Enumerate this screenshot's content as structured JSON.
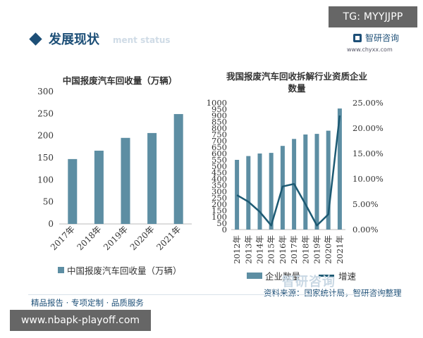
{
  "overlay_tag": "TG: MYYJJPP",
  "overlay_url": "www.nbapk-playoff.com",
  "header": {
    "title": "发展现状",
    "subtitle": "ment status"
  },
  "brand": {
    "name": "智研咨询",
    "url": "www.chyxx.com",
    "watermark": "智研咨询"
  },
  "source_text": "资料来源：国家统计局，智研咨询整理",
  "footer_text": "精品报告 · 专项定制 · 品质服务",
  "colors": {
    "bar": "#5d8ea3",
    "line": "#1d5a73",
    "title": "#1d4f77"
  },
  "chart_data": [
    {
      "type": "bar",
      "title": "中国报废汽车回收量（万辆）",
      "categories": [
        "2017年",
        "2018年",
        "2019年",
        "2020年",
        "2021年"
      ],
      "series": [
        {
          "name": "中国报废汽车回收量（万辆）",
          "values": [
            147,
            166,
            195,
            206,
            249
          ]
        }
      ],
      "ylim": [
        0,
        300
      ],
      "yticks": [
        "0",
        "50",
        "100",
        "150",
        "200",
        "250",
        "300"
      ],
      "legend": "bottom"
    },
    {
      "type": "bar+line",
      "title": "我国报废汽车回收拆解行业资质企业数量",
      "categories": [
        "2012年",
        "2013年",
        "2014年",
        "2015年",
        "2016年",
        "2017年",
        "2018年",
        "2019年",
        "2020年",
        "2021年"
      ],
      "series": [
        {
          "name": "企业数量",
          "type": "bar",
          "axis": "left",
          "values": [
            550,
            580,
            600,
            605,
            660,
            715,
            750,
            755,
            780,
            955
          ]
        },
        {
          "name": "增速",
          "type": "line",
          "axis": "right",
          "unit": "%",
          "values": [
            6.8,
            5.5,
            3.5,
            0.8,
            8.5,
            9.0,
            5.0,
            0.8,
            3.0,
            22.5
          ]
        }
      ],
      "ylim_left": [
        0,
        1000
      ],
      "yticks_left": [
        "0",
        "50",
        "100",
        "150",
        "200",
        "250",
        "300",
        "350",
        "400",
        "450",
        "500",
        "550",
        "600",
        "650",
        "700",
        "750",
        "800",
        "850",
        "900",
        "950",
        "1000"
      ],
      "ylim_right": [
        0,
        25
      ],
      "yticks_right": [
        "0.00%",
        "5.00%",
        "10.00%",
        "15.00%",
        "20.00%",
        "25.00%"
      ],
      "legend": "bottom"
    }
  ]
}
